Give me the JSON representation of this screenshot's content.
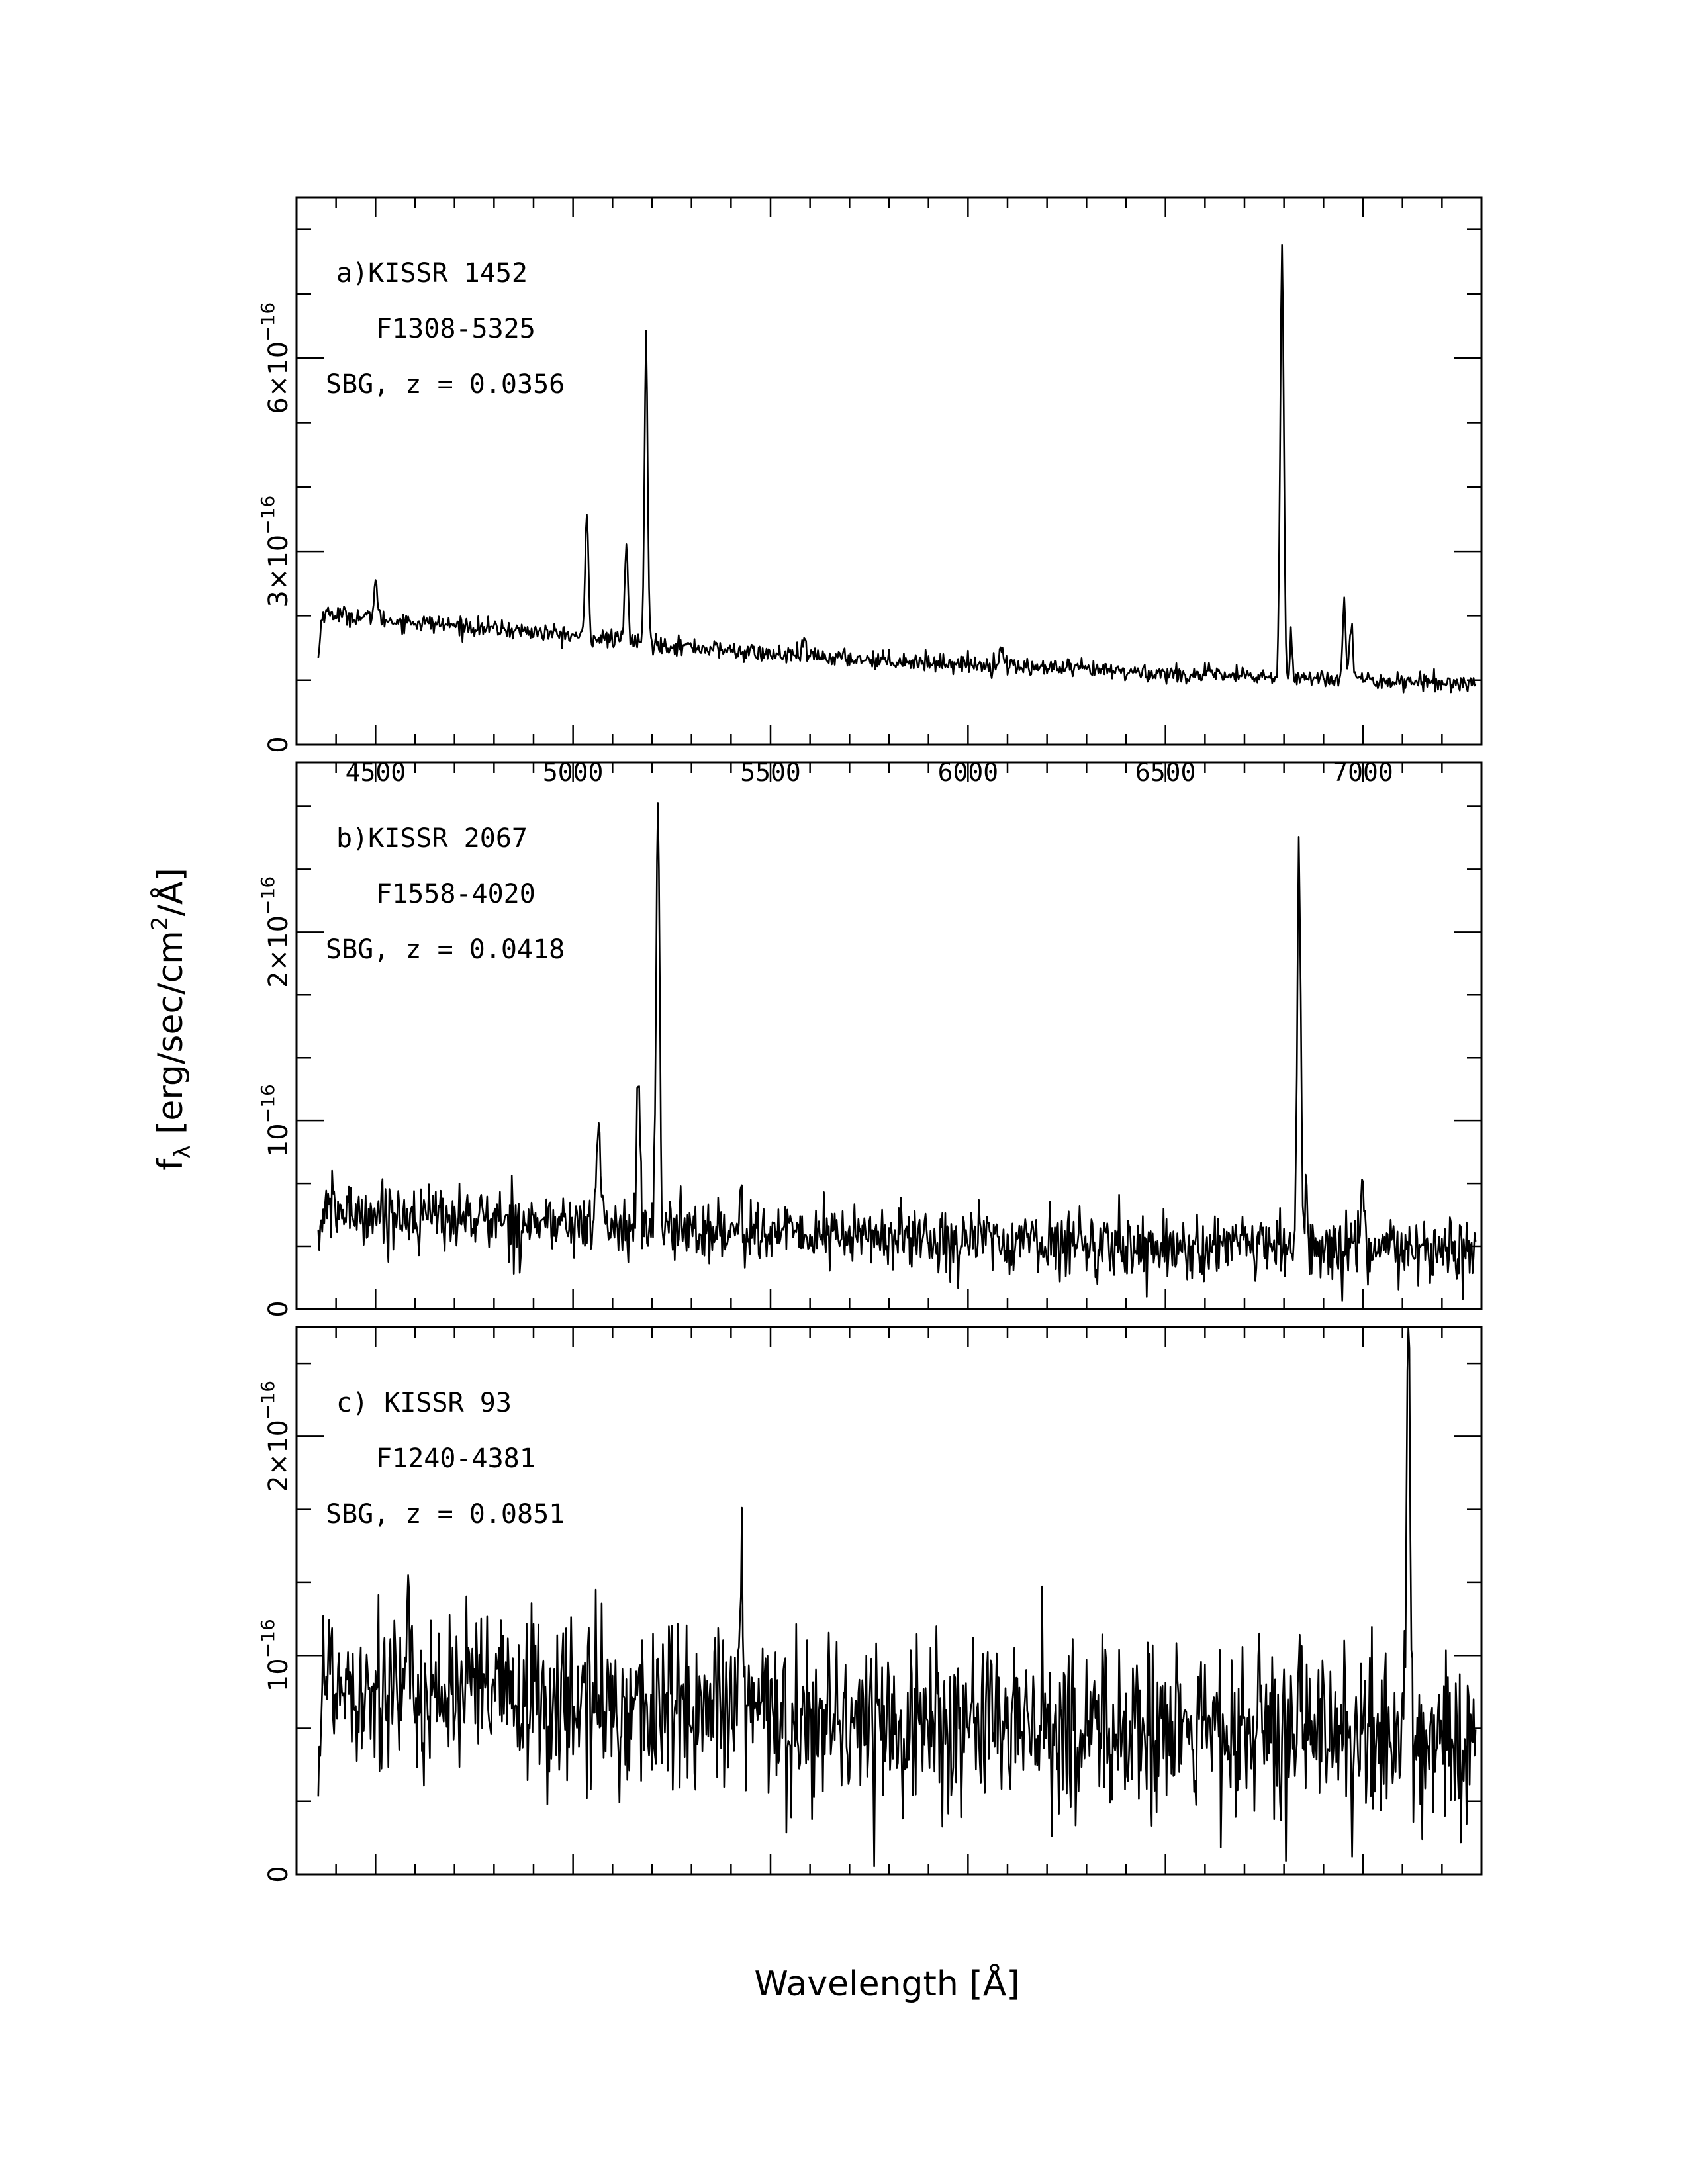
{
  "figure": {
    "xlabel": "Wavelength [Å]",
    "ylabel_main": "f",
    "ylabel_sub": "λ",
    "ylabel_rest": " [erg/sec/cm",
    "ylabel_sup": "2",
    "ylabel_end": "/Å]"
  },
  "chart_data": [
    {
      "type": "line",
      "panel": "a",
      "label_id": "a)KISSR 1452",
      "label_field": "F1308-5325",
      "label_type": "SBG, z = 0.0356",
      "xlim": [
        4300,
        7300
      ],
      "ylim": [
        0,
        8.5e-16
      ],
      "xticks": [
        4500,
        5000,
        5500,
        6000,
        6500,
        7000
      ],
      "xticklabels": [
        "4500",
        "5000",
        "5500",
        "6000",
        "6500",
        "7000"
      ],
      "yticks": [
        0,
        3e-16,
        6e-16
      ],
      "yticklabels": [
        {
          "plain": "0",
          "base": "",
          "exp": ""
        },
        {
          "plain": "",
          "base": "3×10",
          "exp": "−16"
        },
        {
          "plain": "",
          "base": "6×10",
          "exp": "−16"
        }
      ],
      "continuum": {
        "x": [
          4360,
          4500,
          4900,
          5500,
          6000,
          6500,
          7000,
          7280
        ],
        "y": [
          2.05e-16,
          1.95e-16,
          1.75e-16,
          1.4e-16,
          1.25e-16,
          1.1e-16,
          1e-16,
          9.5e-17
        ]
      },
      "noise": 7e-18,
      "lines": [
        {
          "x": 4500,
          "peak": 2.6e-16,
          "width": 4
        },
        {
          "x": 5035,
          "peak": 3.6e-16,
          "width": 4
        },
        {
          "x": 5135,
          "peak": 3.1e-16,
          "width": 4
        },
        {
          "x": 5185,
          "peak": 6.3e-16,
          "width": 4
        },
        {
          "x": 5585,
          "peak": 1.6e-16,
          "width": 4
        },
        {
          "x": 6085,
          "peak": 1.55e-16,
          "width": 5
        },
        {
          "x": 6795,
          "peak": 7.7e-16,
          "width": 4.5
        },
        {
          "x": 6818,
          "peak": 1.8e-16,
          "width": 3
        },
        {
          "x": 6952,
          "peak": 2.3e-16,
          "width": 4
        },
        {
          "x": 6970,
          "peak": 1.95e-16,
          "width": 4
        }
      ]
    },
    {
      "type": "line",
      "panel": "b",
      "label_id": "b)KISSR 2067",
      "label_field": "F1558-4020",
      "label_type": "SBG, z = 0.0418",
      "xlim": [
        4300,
        7300
      ],
      "ylim": [
        0,
        2.9e-16
      ],
      "xticks": [
        4500,
        5000,
        5500,
        6000,
        6500,
        7000
      ],
      "xticklabels": [
        "",
        "",
        "",
        "",
        "",
        ""
      ],
      "yticks": [
        0,
        1e-16,
        2e-16
      ],
      "yticklabels": [
        {
          "plain": "0",
          "base": "",
          "exp": ""
        },
        {
          "plain": "",
          "base": "10",
          "exp": "−16"
        },
        {
          "plain": "",
          "base": "2×10",
          "exp": "−16"
        }
      ],
      "continuum": {
        "x": [
          4360,
          4600,
          5000,
          5500,
          6000,
          6500,
          7000,
          7280
        ],
        "y": [
          5.2e-17,
          5e-17,
          4.5e-17,
          4e-17,
          3.7e-17,
          3.3e-17,
          3.1e-17,
          3e-17
        ]
      },
      "noise": 8.5e-18,
      "lines": [
        {
          "x": 5065,
          "peak": 1.12e-16,
          "width": 4
        },
        {
          "x": 5165,
          "peak": 1.22e-16,
          "width": 4
        },
        {
          "x": 5215,
          "peak": 2.65e-16,
          "width": 4.5
        },
        {
          "x": 5425,
          "peak": 7.2e-17,
          "width": 3
        },
        {
          "x": 6838,
          "peak": 2.42e-16,
          "width": 4.5
        },
        {
          "x": 6856,
          "peak": 6.8e-17,
          "width": 3
        },
        {
          "x": 7000,
          "peak": 7.2e-17,
          "width": 4
        }
      ]
    },
    {
      "type": "line",
      "panel": "c",
      "label_id": "c) KISSR 93",
      "label_field": "F1240-4381",
      "label_type": "SBG, z = 0.0851",
      "xlim": [
        4300,
        7300
      ],
      "ylim": [
        0,
        2.5e-16
      ],
      "xticks": [
        4500,
        5000,
        5500,
        6000,
        6500,
        7000
      ],
      "xticklabels": [
        "",
        "",
        "",
        "",
        "",
        ""
      ],
      "yticks": [
        0,
        1e-16,
        2e-16
      ],
      "yticklabels": [
        {
          "plain": "0",
          "base": "",
          "exp": ""
        },
        {
          "plain": "",
          "base": "10",
          "exp": "−16"
        },
        {
          "plain": "",
          "base": "2×10",
          "exp": "−16"
        }
      ],
      "continuum": {
        "x": [
          4360,
          4600,
          5000,
          5500,
          6000,
          6500,
          7000,
          7280
        ],
        "y": [
          9e-17,
          8.5e-17,
          7.8e-17,
          7.2e-17,
          6.8e-17,
          6.5e-17,
          6.2e-17,
          6e-17
        ]
      },
      "noise": 2e-17,
      "lines": [
        {
          "x": 5425,
          "peak": 1.45e-16,
          "width": 4
        },
        {
          "x": 7115,
          "peak": 2.45e-16,
          "width": 4.5
        }
      ]
    }
  ]
}
